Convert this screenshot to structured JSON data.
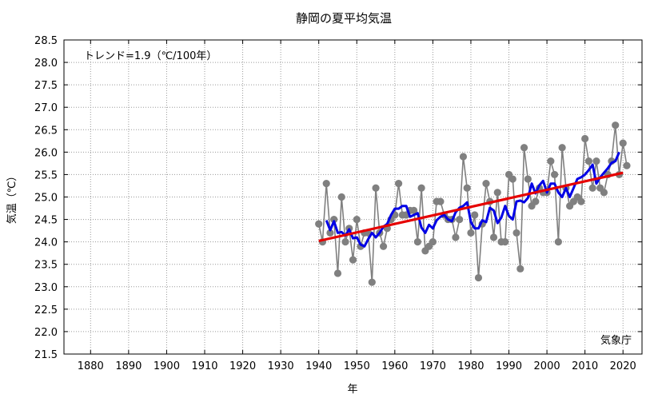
{
  "chart_data": {
    "type": "line",
    "title": "静岡の夏平均気温",
    "xlabel": "年",
    "ylabel": "気温（℃）",
    "trend_text": "トレンド=1.9（℃/100年）",
    "source": "気象庁",
    "xlim": [
      1873,
      2025
    ],
    "ylim": [
      21.5,
      28.5
    ],
    "x_ticks": [
      1880,
      1890,
      1900,
      1910,
      1920,
      1930,
      1940,
      1950,
      1960,
      1970,
      1980,
      1990,
      2000,
      2010,
      2020
    ],
    "y_ticks": [
      "21.5",
      "22.0",
      "22.5",
      "23.0",
      "23.5",
      "24.0",
      "24.5",
      "25.0",
      "25.5",
      "26.0",
      "26.5",
      "27.0",
      "27.5",
      "28.0",
      "28.5"
    ],
    "grid": true,
    "colors": {
      "annual": "#808080",
      "moving_average": "#0000e6",
      "trend": "#e60000"
    },
    "series": [
      {
        "kind": "annual",
        "x": [
          1940,
          1941,
          1942,
          1943,
          1944,
          1945,
          1946,
          1947,
          1948,
          1949,
          1950,
          1951,
          1952,
          1953,
          1954,
          1955,
          1956,
          1957,
          1958,
          1959,
          1960,
          1961,
          1962,
          1963,
          1964,
          1965,
          1966,
          1967,
          1968,
          1969,
          1970,
          1971,
          1972,
          1973,
          1974,
          1975,
          1976,
          1977,
          1978,
          1979,
          1980,
          1981,
          1982,
          1983,
          1984,
          1985,
          1986,
          1987,
          1988,
          1989,
          1990,
          1991,
          1992,
          1993,
          1994,
          1995,
          1996,
          1997,
          1998,
          1999,
          2000,
          2001,
          2002,
          2003,
          2004,
          2005,
          2006,
          2007,
          2008,
          2009,
          2010,
          2011,
          2012,
          2013,
          2014,
          2015,
          2016,
          2017,
          2018,
          2019,
          2020,
          2021
        ],
        "y": [
          24.4,
          24.0,
          25.3,
          24.2,
          24.5,
          23.3,
          25.0,
          24.0,
          24.3,
          23.6,
          24.5,
          23.9,
          24.2,
          24.2,
          23.1,
          25.2,
          24.2,
          23.9,
          24.3,
          24.5,
          24.6,
          25.3,
          24.6,
          24.6,
          24.7,
          24.7,
          24.0,
          25.2,
          23.8,
          23.9,
          24.0,
          24.9,
          24.9,
          24.6,
          24.5,
          24.5,
          24.1,
          24.5,
          25.9,
          25.2,
          24.2,
          24.6,
          23.2,
          24.4,
          25.3,
          24.9,
          24.1,
          25.1,
          24.0,
          24.0,
          25.5,
          25.4,
          24.2,
          23.4,
          26.1,
          25.4,
          24.8,
          24.9,
          25.2,
          25.1,
          25.1,
          25.8,
          25.5,
          24.0,
          26.1,
          25.2,
          24.8,
          24.9,
          25.0,
          24.9,
          26.3,
          25.8,
          25.2,
          25.8,
          25.2,
          25.1,
          25.5,
          25.8,
          26.6,
          25.5,
          26.2,
          25.7
        ]
      },
      {
        "kind": "moving_average",
        "x": [
          1942,
          1943,
          1944,
          1945,
          1946,
          1947,
          1948,
          1949,
          1950,
          1951,
          1952,
          1953,
          1954,
          1955,
          1956,
          1957,
          1958,
          1959,
          1960,
          1961,
          1962,
          1963,
          1964,
          1965,
          1966,
          1967,
          1968,
          1969,
          1970,
          1971,
          1972,
          1973,
          1974,
          1975,
          1976,
          1977,
          1978,
          1979,
          1980,
          1981,
          1982,
          1983,
          1984,
          1985,
          1986,
          1987,
          1988,
          1989,
          1990,
          1991,
          1992,
          1993,
          1994,
          1995,
          1996,
          1997,
          1998,
          1999,
          2000,
          2001,
          2002,
          2003,
          2004,
          2005,
          2006,
          2007,
          2008,
          2009,
          2010,
          2011,
          2012,
          2013,
          2014,
          2015,
          2016,
          2017,
          2018,
          2019
        ],
        "y": [
          24.48,
          24.26,
          24.46,
          24.2,
          24.22,
          24.14,
          24.28,
          24.08,
          24.1,
          23.94,
          23.9,
          24.06,
          24.2,
          24.1,
          24.2,
          24.34,
          24.4,
          24.6,
          24.74,
          24.74,
          24.8,
          24.8,
          24.56,
          24.6,
          24.64,
          24.32,
          24.2,
          24.38,
          24.3,
          24.48,
          24.56,
          24.6,
          24.5,
          24.46,
          24.66,
          24.76,
          24.8,
          24.88,
          24.44,
          24.3,
          24.3,
          24.48,
          24.44,
          24.76,
          24.7,
          24.42,
          24.54,
          24.8,
          24.58,
          24.5,
          24.9,
          24.92,
          24.88,
          24.98,
          25.3,
          25.08,
          25.26,
          25.36,
          25.1,
          25.3,
          25.3,
          25.1,
          25.0,
          25.2,
          25.0,
          25.2,
          25.4,
          25.44,
          25.5,
          25.6,
          25.72,
          25.3,
          25.44,
          25.54,
          25.64,
          25.76,
          25.8,
          26.0
        ]
      },
      {
        "kind": "trend",
        "x": [
          1940,
          2020
        ],
        "y": [
          24.02,
          25.54
        ]
      }
    ]
  }
}
